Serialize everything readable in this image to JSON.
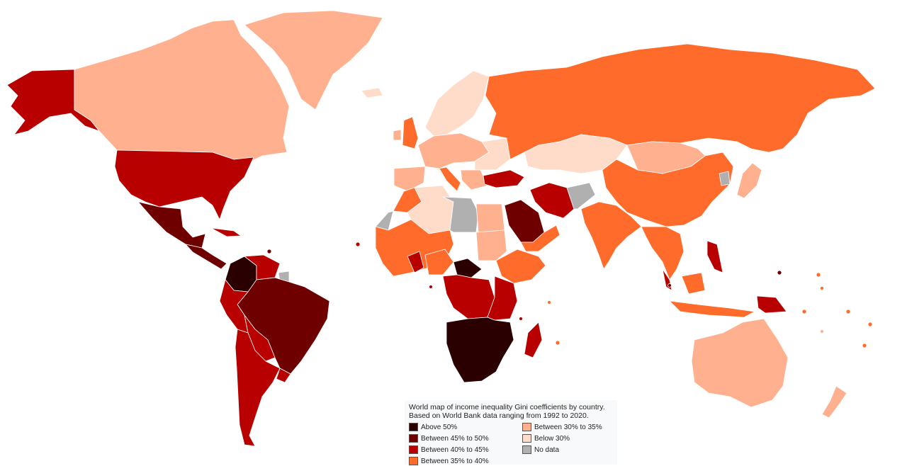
{
  "colors": {
    "above_50": "#2b0000",
    "between_45_50": "#6e0000",
    "between_40_45": "#b80000",
    "between_35_40": "#ff6b2b",
    "between_30_35": "#ffb08f",
    "below_30": "#ffdcc9",
    "no_data": "#b0b0b0",
    "ocean": "#ffffff"
  },
  "legend": {
    "title": "World map of income inequality Gini coefficients by country. Based on World Bank data ranging from 1992 to 2020.",
    "items": [
      {
        "key": "above_50",
        "label": "Above 50%"
      },
      {
        "key": "between_45_50",
        "label": "Between 45% to 50%"
      },
      {
        "key": "between_40_45",
        "label": "Between 40% to 45%"
      },
      {
        "key": "between_35_40",
        "label": "Between 35% to 40%"
      },
      {
        "key": "between_30_35",
        "label": "Between 30% to 35%"
      },
      {
        "key": "below_30",
        "label": "Below 30%"
      },
      {
        "key": "no_data",
        "label": "No data"
      }
    ]
  }
}
